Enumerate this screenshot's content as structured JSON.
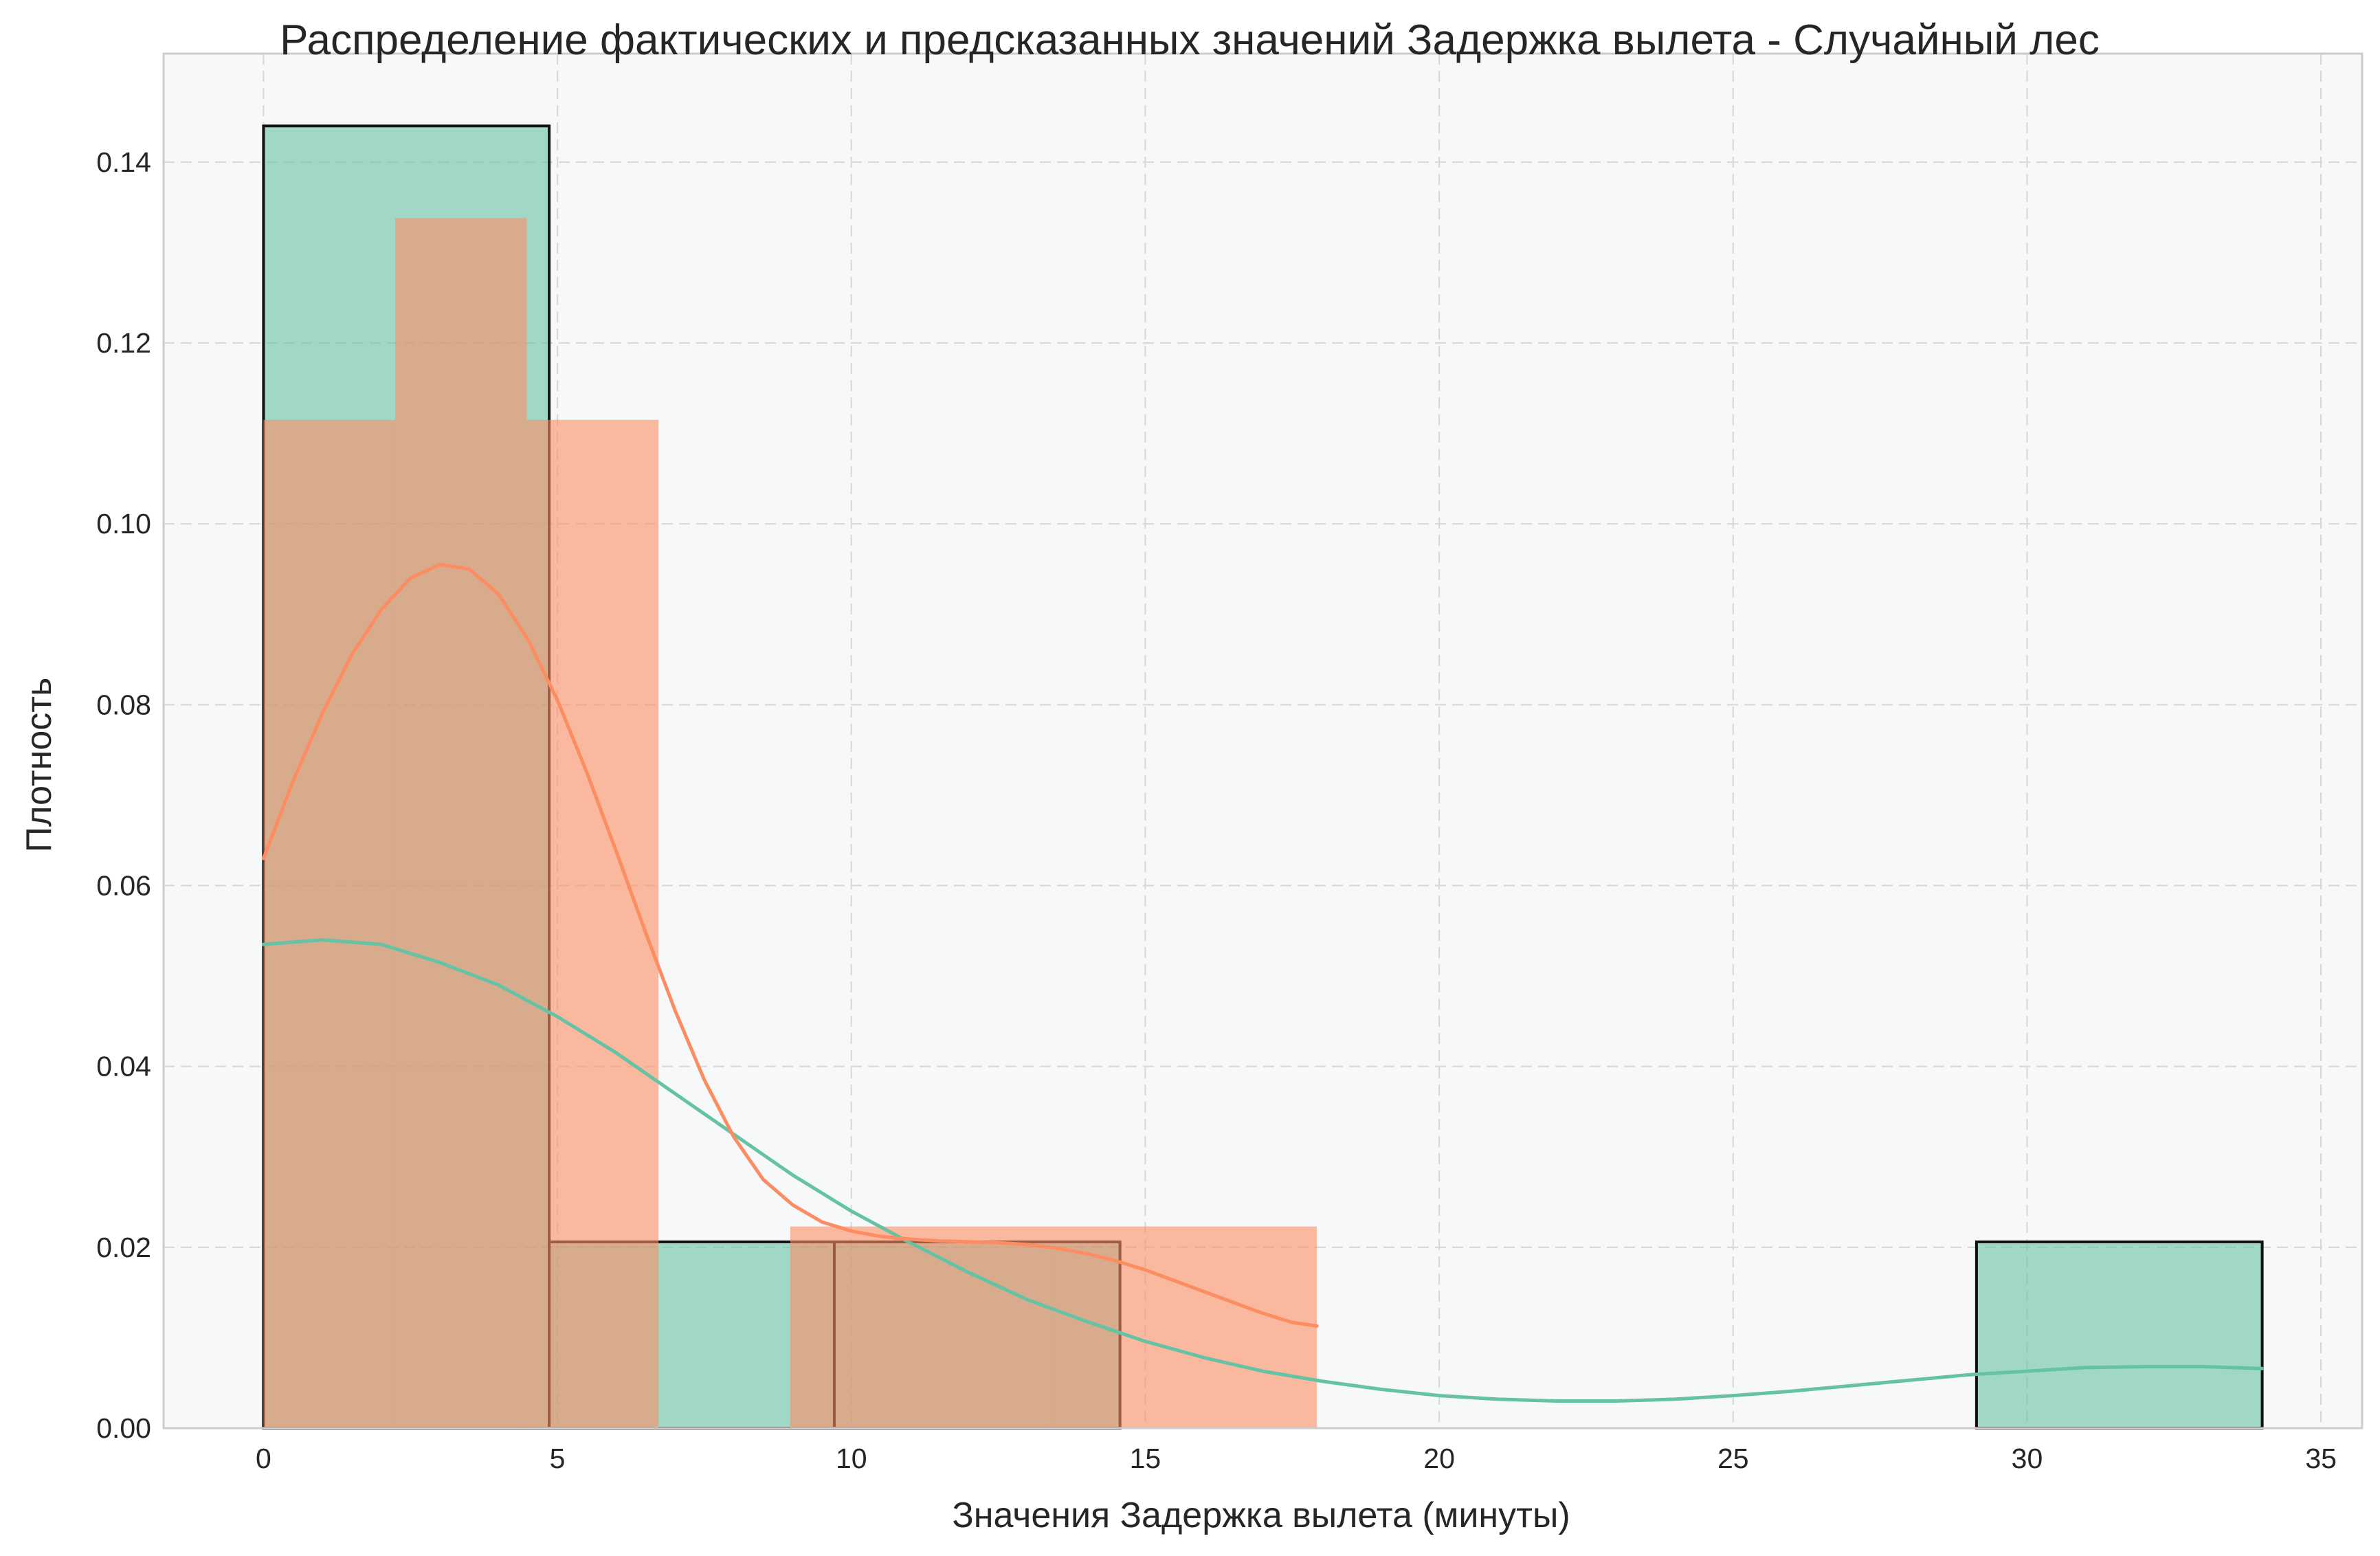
{
  "chart_data": {
    "type": "histogram",
    "title": "Распределение фактических и предсказанных значений Задержка вылета - Случайный лес",
    "xlabel": "Значения Задержка вылета (минуты)",
    "ylabel": "Плотность",
    "xlim": [
      -1.7,
      35.7
    ],
    "ylim": [
      0,
      0.152
    ],
    "xticks": [
      0,
      5,
      10,
      15,
      20,
      25,
      30,
      35
    ],
    "xtick_labels": [
      "0",
      "5",
      "10",
      "15",
      "20",
      "25",
      "30",
      "35"
    ],
    "yticks": [
      0,
      0.02,
      0.04,
      0.06,
      0.08,
      0.1,
      0.12,
      0.14
    ],
    "ytick_labels": [
      "0.00",
      "0.02",
      "0.04",
      "0.06",
      "0.08",
      "0.10",
      "0.12",
      "0.14"
    ],
    "grid": true,
    "series": [
      {
        "key": "actual",
        "color": "#66c2a5",
        "fill_opacity": 0.6,
        "bins": [
          {
            "x0": 0.0,
            "x1": 4.86,
            "density": 0.144
          },
          {
            "x0": 4.86,
            "x1": 9.71,
            "density": 0.0206
          },
          {
            "x0": 9.71,
            "x1": 14.57,
            "density": 0.0206
          },
          {
            "x0": 29.14,
            "x1": 34.0,
            "density": 0.0206
          }
        ],
        "kde": {
          "x": [
            0,
            1,
            2,
            3,
            4,
            5,
            6,
            7,
            8,
            9,
            10,
            11,
            12,
            13,
            14,
            15,
            16,
            17,
            18,
            19,
            20,
            21,
            22,
            23,
            24,
            25,
            26,
            27,
            28,
            29,
            30,
            31,
            32,
            33,
            34
          ],
          "y": [
            0.0535,
            0.054,
            0.0535,
            0.0515,
            0.049,
            0.0455,
            0.0415,
            0.037,
            0.0325,
            0.028,
            0.024,
            0.0205,
            0.0172,
            0.0142,
            0.0118,
            0.0096,
            0.0078,
            0.0063,
            0.0052,
            0.0043,
            0.0036,
            0.0032,
            0.003,
            0.003,
            0.0032,
            0.0036,
            0.0041,
            0.0047,
            0.0053,
            0.0059,
            0.0063,
            0.0067,
            0.0068,
            0.0068,
            0.0066
          ]
        }
      },
      {
        "key": "predicted",
        "color": "#fc8d62",
        "fill_opacity": 0.6,
        "bins": [
          {
            "x0": 0.0,
            "x1": 2.24,
            "density": 0.1115
          },
          {
            "x0": 2.24,
            "x1": 4.48,
            "density": 0.1338
          },
          {
            "x0": 4.48,
            "x1": 6.72,
            "density": 0.1115
          },
          {
            "x0": 8.96,
            "x1": 11.2,
            "density": 0.0223
          },
          {
            "x0": 11.2,
            "x1": 13.44,
            "density": 0.0223
          },
          {
            "x0": 13.44,
            "x1": 15.68,
            "density": 0.0223
          },
          {
            "x0": 15.68,
            "x1": 17.92,
            "density": 0.0223
          }
        ],
        "kde": {
          "x": [
            0,
            0.5,
            1,
            1.5,
            2,
            2.5,
            3,
            3.5,
            4,
            4.5,
            5,
            5.5,
            6,
            6.5,
            7,
            7.5,
            8,
            8.5,
            9,
            9.5,
            10,
            10.5,
            11,
            11.5,
            12,
            12.5,
            13,
            13.5,
            14,
            14.5,
            15,
            15.5,
            16,
            16.5,
            17,
            17.5,
            17.92
          ],
          "y": [
            0.063,
            0.0715,
            0.079,
            0.0855,
            0.0905,
            0.094,
            0.0955,
            0.095,
            0.0922,
            0.0872,
            0.0805,
            0.0725,
            0.0638,
            0.0548,
            0.0462,
            0.0385,
            0.0322,
            0.0275,
            0.0247,
            0.0228,
            0.0218,
            0.0212,
            0.0209,
            0.0207,
            0.0206,
            0.0205,
            0.0203,
            0.0199,
            0.0193,
            0.0185,
            0.0175,
            0.0163,
            0.0151,
            0.0139,
            0.0127,
            0.0117,
            0.0113
          ]
        }
      }
    ]
  }
}
